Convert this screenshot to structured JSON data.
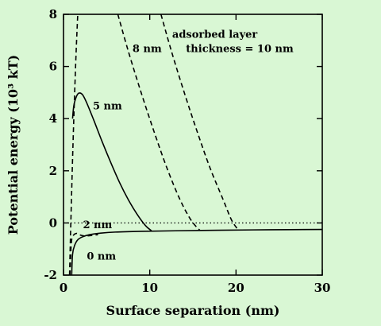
{
  "chart_data": {
    "type": "line",
    "xlabel": "Surface separation (nm)",
    "ylabel": "Potential energy (10³ kT)",
    "xlim": [
      0,
      30
    ],
    "ylim": [
      -2,
      8
    ],
    "x_ticks": [
      0,
      10,
      20,
      30
    ],
    "y_ticks": [
      -2,
      0,
      2,
      4,
      6,
      8
    ],
    "grid": false,
    "reference_line": {
      "y": 0,
      "style": "dotted"
    },
    "series": [
      {
        "name": "0 nm",
        "style": "solid",
        "x": [
          0.95,
          1.05,
          1.3,
          1.7,
          2.3,
          3,
          4,
          6,
          9,
          13,
          18,
          24,
          30
        ],
        "y": [
          -2,
          -1.2,
          -0.85,
          -0.63,
          -0.52,
          -0.45,
          -0.4,
          -0.35,
          -0.32,
          -0.3,
          -0.28,
          -0.26,
          -0.25
        ]
      },
      {
        "name": "2 nm",
        "style": "dashed",
        "x": [
          0.75,
          0.9,
          1.1,
          1.5,
          2,
          2.5,
          3.2,
          4
        ],
        "y": [
          -2,
          -0.8,
          -0.5,
          -0.4,
          -0.47,
          -0.5,
          -0.48,
          -0.45
        ]
      },
      {
        "name": "5 nm",
        "style": "solid",
        "x": [
          1.05,
          1.2,
          1.5,
          1.8,
          2.2,
          2.7,
          3.5,
          4.5,
          5.5,
          6.5,
          7.5,
          8.5,
          9.5,
          10.2
        ],
        "y": [
          4.0,
          4.5,
          4.85,
          4.98,
          4.92,
          4.6,
          3.95,
          3.1,
          2.3,
          1.55,
          0.9,
          0.35,
          -0.1,
          -0.3
        ]
      },
      {
        "name": "8 nm",
        "style": "dashed",
        "x": [
          6.3,
          7.5,
          9,
          10.5,
          12,
          13.5,
          14.8,
          15.8
        ],
        "y": [
          8,
          6.6,
          5.0,
          3.5,
          2.1,
          0.9,
          0.1,
          -0.28
        ]
      },
      {
        "name": "10 nm",
        "style": "dashed",
        "x": [
          11.3,
          12.5,
          14,
          15.5,
          17,
          18.5,
          19.5,
          20.3
        ],
        "y": [
          8,
          6.6,
          5.0,
          3.5,
          2.1,
          0.9,
          0.1,
          -0.28
        ]
      },
      {
        "name": "",
        "style": "dashed",
        "x": [
          0.7,
          0.85,
          1.1,
          1.4,
          1.65
        ],
        "y": [
          -2,
          0,
          3,
          6,
          8
        ]
      }
    ],
    "annotations": [
      {
        "text": "adsorbed layer",
        "x": 12.6,
        "y": 7.1
      },
      {
        "text": "thickness = 10 nm",
        "x": 14.2,
        "y": 6.55
      },
      {
        "text": "8 nm",
        "x": 8.0,
        "y": 6.55
      },
      {
        "text": "5 nm",
        "x": 3.4,
        "y": 4.35
      },
      {
        "text": "2 nm",
        "x": 2.25,
        "y": -0.2
      },
      {
        "text": "0 nm",
        "x": 2.7,
        "y": -1.4
      }
    ]
  }
}
